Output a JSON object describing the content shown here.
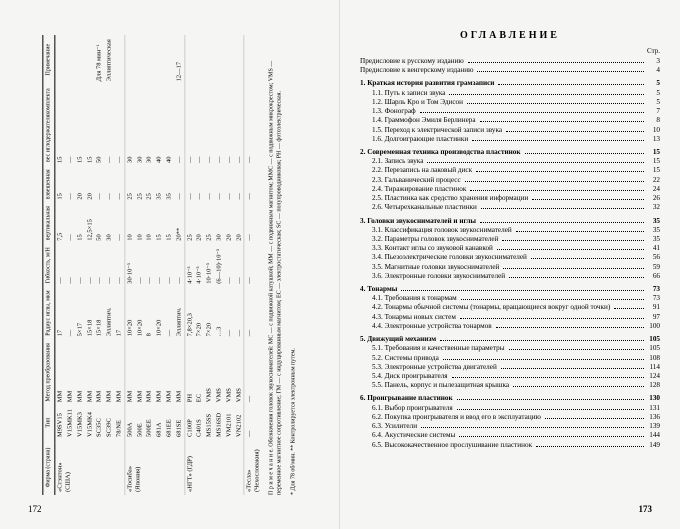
{
  "leftPage": {
    "pageNumber": "172",
    "headers": [
      "Фирма (страна)",
      "Тип",
      "Метод преобразования",
      "Радиус иглы, мкм",
      "Гибкость, м/Н",
      "вертикальная",
      "взвешенная",
      "вес иглодержателякомплекта",
      "Примечание"
    ],
    "forceHeader": "Прижимная сила, мН",
    "groups": [
      {
        "firm": "«Стэнтон» (США)",
        "rows": [
          [
            "M9SV15",
            "MM",
            "17",
            "—",
            "7,5",
            "15",
            "15",
            ""
          ],
          [
            "V15MK11",
            "MM",
            "—",
            "—",
            "—",
            "—",
            "—",
            ""
          ],
          [
            "V15MK3",
            "MM",
            "5×17",
            "—",
            "15",
            "20",
            "15",
            ""
          ],
          [
            "V15MK4",
            "MM",
            "15×18",
            "—",
            "12,5×15",
            "20",
            "15",
            ""
          ],
          [
            "SC35C",
            "MM",
            "15×18",
            "—",
            "50",
            "—",
            "50",
            "Для 78 мин⁻¹"
          ],
          [
            "SC39C",
            "MM",
            "Эллиптич.",
            "—",
            "30",
            "—",
            "—",
            "Эллиптическая"
          ],
          [
            "78/NE",
            "MM",
            "17",
            "—",
            "—",
            "—",
            "—",
            ""
          ]
        ]
      },
      {
        "firm": "«Тосиба» (Япония)",
        "rows": [
          [
            "500A",
            "MM",
            "10×20",
            "30·10⁻³",
            "10",
            "25",
            "30",
            ""
          ],
          [
            "500E",
            "MM",
            "10×20",
            "—",
            "10",
            "25",
            "30",
            ""
          ],
          [
            "500EE",
            "MM",
            "8",
            "—",
            "10",
            "25",
            "30",
            ""
          ],
          [
            "681A",
            "MM",
            "10×20",
            "—",
            "15",
            "35",
            "40",
            ""
          ],
          [
            "681EE",
            "MM",
            "—",
            "—",
            "15",
            "35",
            "40",
            ""
          ],
          [
            "681SE",
            "MM",
            "Эллиптич.",
            "—",
            "20**",
            "—",
            "—",
            "12—17"
          ]
        ]
      },
      {
        "firm": "«НГТ» (ГДР)",
        "rows": [
          [
            "C100P",
            "PH",
            "7,8×20,3",
            "4·10⁻³",
            "25",
            "—",
            "—",
            ""
          ],
          [
            "C401S",
            "EC",
            "7×20",
            "4·10⁻³",
            "20",
            "—",
            "—",
            ""
          ],
          [
            "MS15SS",
            "VMS",
            "7×20",
            "10·10⁻³",
            "25",
            "—",
            "—",
            ""
          ],
          [
            "MS16SD",
            "VMS",
            "…3",
            "(6—10)·10⁻³",
            "30",
            "—",
            "—",
            ""
          ],
          [
            "VM2101",
            "VMS",
            "—",
            "—",
            "20",
            "—",
            "—",
            ""
          ],
          [
            "VN2102",
            "VMS",
            "—",
            "—",
            "20",
            "—",
            "—",
            ""
          ]
        ]
      },
      {
        "firm": "«Тесла» (Чехословакия)",
        "rows": [
          [
            "—",
            "—",
            "—",
            "—",
            "—",
            "—",
            "—",
            ""
          ]
        ]
      }
    ],
    "note1": "П р и м е ч а н и е. Обозначения головок звукоснимателей: MC — с подвижной катушкой; MM — с подвижным магнитом; MMC — с подвижным микрокрестом; VMS — переменное магнитное сопротивление; ГМ — с индуцированным магнитом; EC — электростатическая; SC — полупроводниковая; PH — фотоэлектрическая.",
    "note2": "* Для 78 об/мин. ** Контролируется электронным путем."
  },
  "rightPage": {
    "pageNumber": "173",
    "title": "ОГЛАВЛЕНИЕ",
    "strHeader": "Стр.",
    "preface": [
      {
        "label": "Предисловие к русскому изданию",
        "page": "3"
      },
      {
        "label": "Предисловие к венгерскому изданию",
        "page": "4"
      }
    ],
    "sections": [
      {
        "num": "1.",
        "title": "Краткая история развития грамзаписи",
        "page": "5",
        "items": [
          {
            "num": "1.1.",
            "label": "Путь к записи звука",
            "page": "5"
          },
          {
            "num": "1.2.",
            "label": "Шарль Кро и Том Эдисон",
            "page": "5"
          },
          {
            "num": "1.3.",
            "label": "Фонограф",
            "page": "7"
          },
          {
            "num": "1.4.",
            "label": "Граммофон Эмиля Берлинера",
            "page": "8"
          },
          {
            "num": "1.5.",
            "label": "Переход к электрической записи звука",
            "page": "10"
          },
          {
            "num": "1.6.",
            "label": "Долгоиграющие пластинки",
            "page": "13"
          }
        ]
      },
      {
        "num": "2.",
        "title": "Современная техника производства пластинок",
        "page": "15",
        "items": [
          {
            "num": "2.1.",
            "label": "Запись звука",
            "page": "15"
          },
          {
            "num": "2.2.",
            "label": "Перезапись на лаковый диск",
            "page": "15"
          },
          {
            "num": "2.3.",
            "label": "Гальванический процесс",
            "page": "22"
          },
          {
            "num": "2.4.",
            "label": "Тиражирование пластинок",
            "page": "24"
          },
          {
            "num": "2.5.",
            "label": "Пластинка как средство хранения информации",
            "page": "26"
          },
          {
            "num": "2.6.",
            "label": "Четырехканальные пластинки",
            "page": "32"
          }
        ]
      },
      {
        "num": "3.",
        "title": "Головки звукоснимателей и иглы",
        "page": "35",
        "items": [
          {
            "num": "3.1.",
            "label": "Классификация головок звукоснимателей",
            "page": "35"
          },
          {
            "num": "3.2.",
            "label": "Параметры головок звукоснимателей",
            "page": "35"
          },
          {
            "num": "3.3.",
            "label": "Контакт иглы со звуковой канавкой",
            "page": "41"
          },
          {
            "num": "3.4.",
            "label": "Пьезоэлектрические головки звукоснимателей",
            "page": "56"
          },
          {
            "num": "3.5.",
            "label": "Магнитные головки звукоснимателей",
            "page": "59"
          },
          {
            "num": "3.6.",
            "label": "Электронные головки звукоснимателей",
            "page": "66"
          }
        ]
      },
      {
        "num": "4.",
        "title": "Тонармы",
        "page": "73",
        "items": [
          {
            "num": "4.1.",
            "label": "Требования к тонармам",
            "page": "73"
          },
          {
            "num": "4.2.",
            "label": "Тонармы обычной системы (тонармы, вращающиеся вокруг одной точки)",
            "page": "91"
          },
          {
            "num": "4.3.",
            "label": "Тонармы новых систем",
            "page": "97"
          },
          {
            "num": "4.4.",
            "label": "Электронные устройства тонармов",
            "page": "100"
          }
        ]
      },
      {
        "num": "5.",
        "title": "Движущий механизм",
        "page": "105",
        "items": [
          {
            "num": "5.1.",
            "label": "Требования и качественные параметры",
            "page": "105"
          },
          {
            "num": "5.2.",
            "label": "Системы привода",
            "page": "108"
          },
          {
            "num": "5.3.",
            "label": "Электронные устройства двигателей",
            "page": "114"
          },
          {
            "num": "5.4.",
            "label": "Диск проигрывателя",
            "page": "124"
          },
          {
            "num": "5.5.",
            "label": "Панель, корпус и пылезащитная крышка",
            "page": "128"
          }
        ]
      },
      {
        "num": "6.",
        "title": "Проигрывание пластинок",
        "page": "130",
        "items": [
          {
            "num": "6.1.",
            "label": "Выбор проигрывателя",
            "page": "131"
          },
          {
            "num": "6.2.",
            "label": "Покупка проигрывателя и ввод его в эксплуатацию",
            "page": "136"
          },
          {
            "num": "6.3.",
            "label": "Усилители",
            "page": "139"
          },
          {
            "num": "6.4.",
            "label": "Акустические системы",
            "page": "144"
          },
          {
            "num": "6.5.",
            "label": "Высококачественное прослушивание пластинок",
            "page": "149"
          }
        ]
      }
    ]
  }
}
